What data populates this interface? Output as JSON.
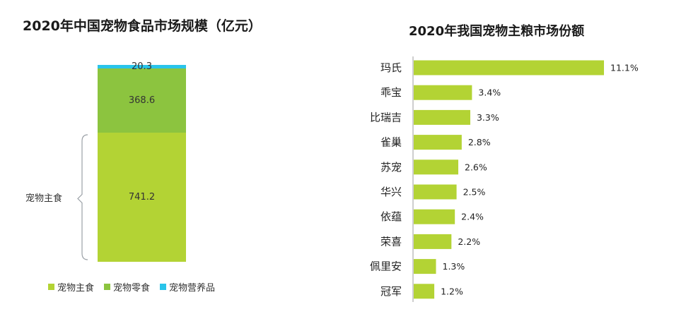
{
  "chart_data": [
    {
      "type": "bar",
      "stacked": true,
      "title": "2020年中国宠物食品市场规模（亿元）",
      "categories": [
        "2020"
      ],
      "series": [
        {
          "name": "宠物主食",
          "values": [
            741.2
          ],
          "color": "#b3d334"
        },
        {
          "name": "宠物零食",
          "values": [
            368.6
          ],
          "color": "#8cc43f"
        },
        {
          "name": "宠物营养品",
          "values": [
            20.3
          ],
          "color": "#29c4ea"
        }
      ],
      "data_labels": [
        "741.2",
        "368.6",
        "20.3"
      ],
      "annotation": "宠物主食",
      "legend_position": "bottom"
    },
    {
      "type": "bar",
      "orientation": "horizontal",
      "title": "2020年我国宠物主粮市场份额",
      "categories": [
        "玛氏",
        "乖宝",
        "比瑞吉",
        "雀巢",
        "苏宠",
        "华兴",
        "依蕴",
        "荣喜",
        "佩里安",
        "冠军"
      ],
      "values": [
        11.1,
        3.4,
        3.3,
        2.8,
        2.6,
        2.5,
        2.4,
        2.2,
        1.3,
        1.2
      ],
      "value_labels": [
        "11.1%",
        "3.4%",
        "3.3%",
        "2.8%",
        "2.6%",
        "2.5%",
        "2.4%",
        "2.2%",
        "1.3%",
        "1.2%"
      ],
      "unit": "%",
      "color": "#b3d334"
    }
  ]
}
